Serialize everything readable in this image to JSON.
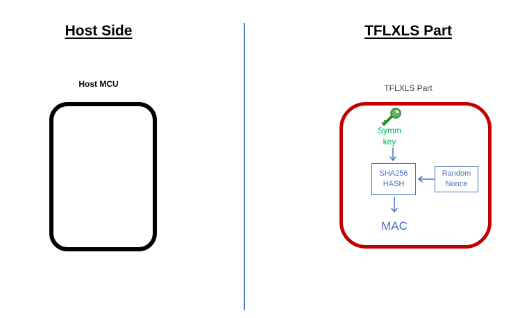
{
  "host": {
    "title": "Host Side",
    "box_label": "Host MCU"
  },
  "part": {
    "title": "TFLXLS Part",
    "box_label": "TFLXLS Part",
    "key": {
      "icon": "key-icon",
      "line1": "Symm",
      "line2": "key"
    },
    "sha": {
      "line1": "SHA256",
      "line2": "HASH"
    },
    "nonce": {
      "line1": "Random",
      "line2": "Nonce"
    },
    "output": "MAC"
  },
  "colors": {
    "divider": "#4a7ebb",
    "part_border": "#c00000",
    "host_border": "#000000",
    "diagram_blue": "#4472c4",
    "key_green": "#00b050"
  }
}
